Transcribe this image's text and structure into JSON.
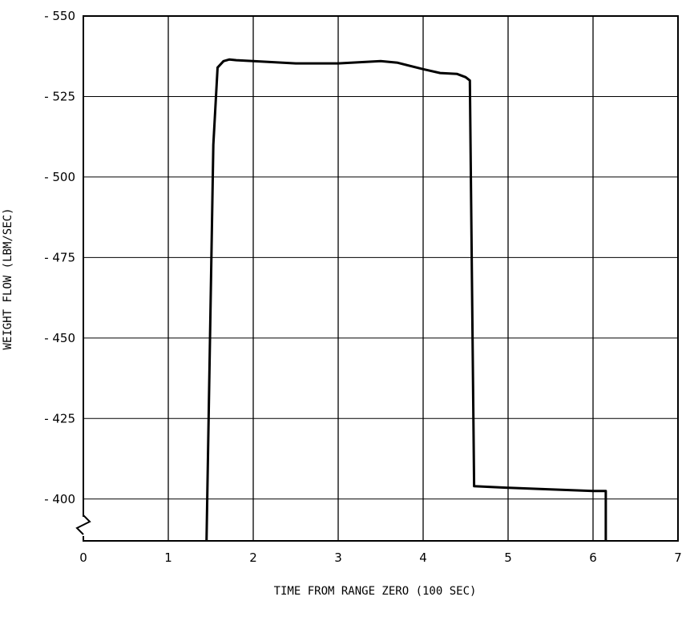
{
  "chart_data": {
    "type": "line",
    "title": "",
    "xlabel": "TIME FROM RANGE ZERO (100 SEC)",
    "ylabel": "WEIGHT FLOW (LBM/SEC)",
    "xlim": [
      0,
      7
    ],
    "ylim": [
      -387,
      -550
    ],
    "x_ticks": [
      0,
      1,
      2,
      3,
      4,
      5,
      6,
      7
    ],
    "x_tick_labels": [
      "0",
      "1",
      "2",
      "3",
      "4",
      "5",
      "6",
      "7"
    ],
    "y_ticks": [
      -400,
      -425,
      -450,
      -475,
      -500,
      -525,
      -550
    ],
    "y_tick_labels": [
      "- 400",
      "- 425",
      "- 450",
      "- 475",
      "- 500",
      "- 525",
      "- 550"
    ],
    "grid": true,
    "axis_break": "lower-left",
    "colors": {
      "line": "#000000",
      "grid": "#000000",
      "background": "#ffffff"
    },
    "series": [
      {
        "x": [
          1.45,
          1.53,
          1.58,
          1.65,
          1.72,
          1.8,
          2.0,
          2.5,
          3.0,
          3.5,
          3.7,
          4.0,
          4.2,
          4.4,
          4.5,
          4.55,
          4.6,
          5.0,
          5.5,
          6.0,
          6.15,
          6.15
        ],
        "y": [
          -387,
          -510,
          -534,
          -536,
          -536.5,
          -536.3,
          -536,
          -535.3,
          -535.3,
          -536,
          -535.5,
          -533.5,
          -532.3,
          -532,
          -531,
          -530,
          -404,
          -403.5,
          -403,
          -402.5,
          -402.5,
          -387
        ]
      }
    ]
  }
}
